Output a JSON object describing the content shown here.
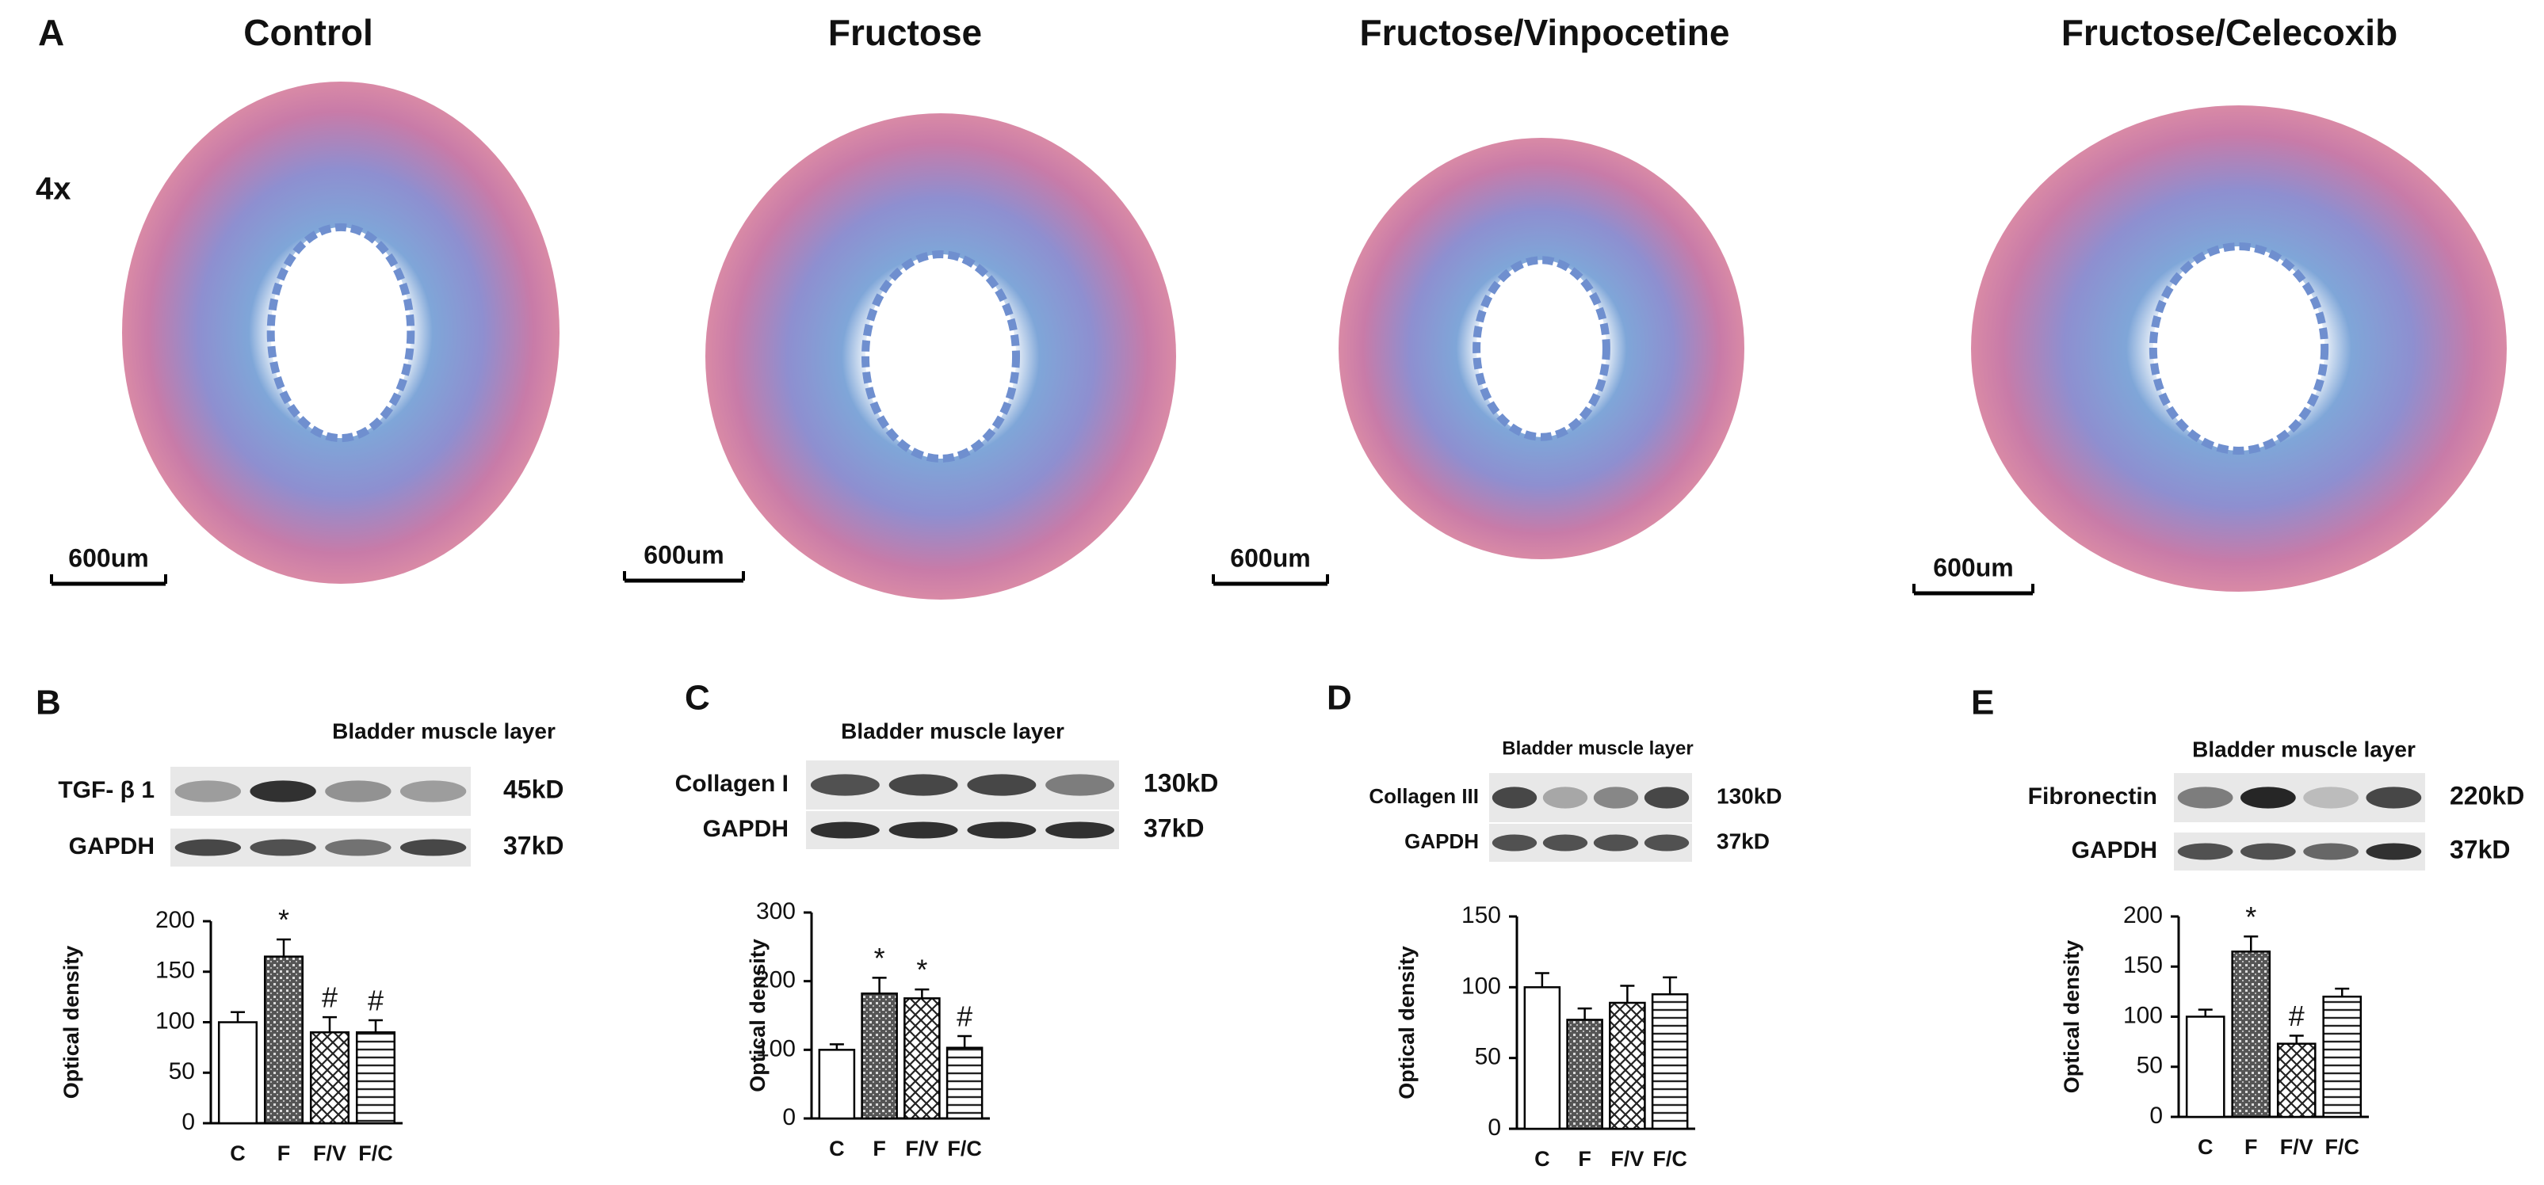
{
  "panel_a": {
    "label": "A",
    "magnification": "4x",
    "images": [
      {
        "title": "Control",
        "scale_bar": "600um"
      },
      {
        "title": "Fructose",
        "scale_bar": "600um"
      },
      {
        "title": "Fructose/Vinpocetine",
        "scale_bar": "600um"
      },
      {
        "title": "Fructose/Celecoxib",
        "scale_bar": "600um"
      }
    ]
  },
  "chart_data": [
    {
      "type": "bar",
      "panel": "B",
      "blot_title": "Bladder muscle layer",
      "blots": [
        {
          "label": "TGF- β 1",
          "size": "45kD"
        },
        {
          "label": "GAPDH",
          "size": "37kD"
        }
      ],
      "y_label": "Optical density",
      "categories": [
        "C",
        "F",
        "F/V",
        "F/C"
      ],
      "values": [
        100,
        165,
        90,
        90
      ],
      "errors": [
        10,
        17,
        15,
        12
      ],
      "annotations": [
        null,
        "*",
        "#",
        "#"
      ],
      "fills": [
        "white",
        "dots",
        "crosshatch",
        "hlines"
      ],
      "ylim": [
        0,
        200
      ],
      "yticks": [
        0,
        50,
        100,
        150,
        200
      ]
    },
    {
      "type": "bar",
      "panel": "C",
      "blot_title": "Bladder muscle layer",
      "blots": [
        {
          "label": "Collagen I",
          "size": "130kD"
        },
        {
          "label": "GAPDH",
          "size": "37kD"
        }
      ],
      "y_label": "Optical density",
      "categories": [
        "C",
        "F",
        "F/V",
        "F/C"
      ],
      "values": [
        100,
        182,
        175,
        103
      ],
      "errors": [
        8,
        23,
        13,
        17
      ],
      "annotations": [
        null,
        "*",
        "*",
        "#"
      ],
      "fills": [
        "white",
        "dots",
        "crosshatch",
        "hlines"
      ],
      "ylim": [
        0,
        300
      ],
      "yticks": [
        0,
        100,
        200,
        300
      ]
    },
    {
      "type": "bar",
      "panel": "D",
      "blot_title": "Bladder muscle layer",
      "blots": [
        {
          "label": "Collagen III",
          "size": "130kD"
        },
        {
          "label": "GAPDH",
          "size": "37kD"
        }
      ],
      "y_label": "Optical density",
      "categories": [
        "C",
        "F",
        "F/V",
        "F/C"
      ],
      "values": [
        100,
        77,
        89,
        95
      ],
      "errors": [
        10,
        8,
        12,
        12
      ],
      "annotations": [
        null,
        null,
        null,
        null
      ],
      "fills": [
        "white",
        "dots",
        "crosshatch",
        "hlines"
      ],
      "ylim": [
        0,
        150
      ],
      "yticks": [
        0,
        50,
        100,
        150
      ]
    },
    {
      "type": "bar",
      "panel": "E",
      "blot_title": "Bladder muscle layer",
      "blots": [
        {
          "label": "Fibronectin",
          "size": "220kD"
        },
        {
          "label": "GAPDH",
          "size": "37kD"
        }
      ],
      "y_label": "Optical density",
      "categories": [
        "C",
        "F",
        "F/V",
        "F/C"
      ],
      "values": [
        100,
        165,
        73,
        120
      ],
      "errors": [
        7,
        15,
        8,
        8
      ],
      "annotations": [
        null,
        "*",
        "#",
        null
      ],
      "fills": [
        "white",
        "dots",
        "crosshatch",
        "hlines"
      ],
      "ylim": [
        0,
        200
      ],
      "yticks": [
        0,
        50,
        100,
        150,
        200
      ]
    }
  ]
}
